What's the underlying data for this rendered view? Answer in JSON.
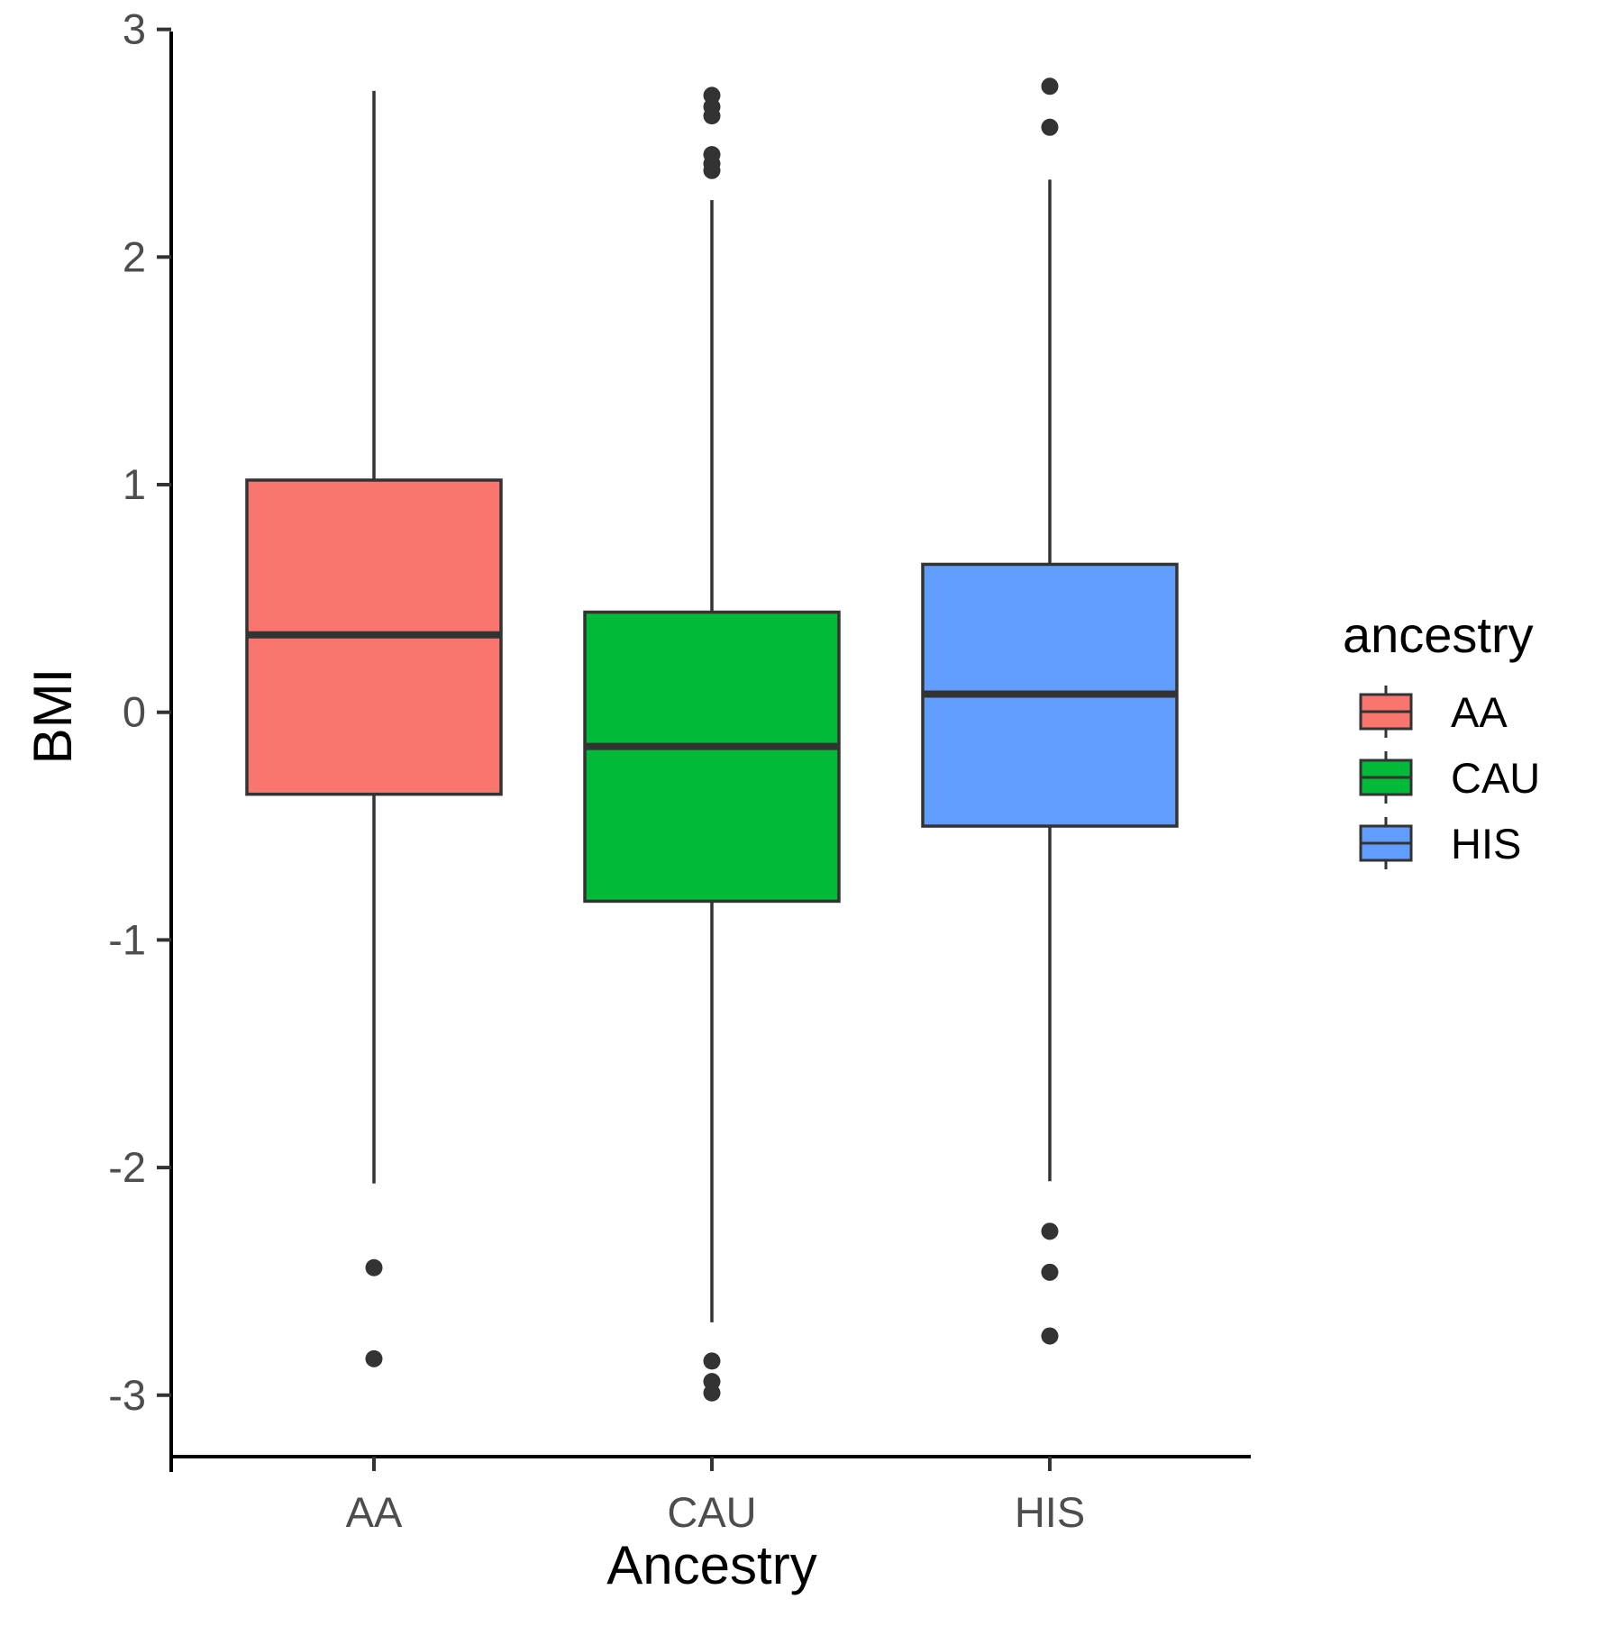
{
  "chart_data": {
    "type": "box",
    "xlabel": "Ancestry",
    "ylabel": "BMI",
    "ylim": [
      -3.27,
      3.05
    ],
    "yticks": [
      -3,
      -2,
      -1,
      0,
      1,
      2,
      3
    ],
    "ytick_labels": [
      "-3",
      "-2",
      "-1",
      "0",
      "1",
      "2",
      "3"
    ],
    "categories": [
      "AA",
      "CAU",
      "HIS"
    ],
    "grid": false,
    "legend": {
      "title": "ancestry",
      "position": "right",
      "entries": [
        "AA",
        "CAU",
        "HIS"
      ]
    },
    "series": [
      {
        "name": "AA",
        "color": "#F8766D",
        "whisker_low": -2.07,
        "q1": -0.36,
        "median": 0.34,
        "q3": 1.02,
        "whisker_high": 2.73,
        "outliers": [
          -2.44,
          -2.84
        ]
      },
      {
        "name": "CAU",
        "color": "#00BA38",
        "whisker_low": -2.68,
        "q1": -0.83,
        "median": -0.15,
        "q3": 0.44,
        "whisker_high": 2.25,
        "outliers": [
          2.71,
          2.66,
          2.62,
          2.45,
          2.41,
          2.38,
          -2.85,
          -2.94,
          -2.99
        ]
      },
      {
        "name": "HIS",
        "color": "#619CFF",
        "whisker_low": -2.06,
        "q1": -0.5,
        "median": 0.08,
        "q3": 0.65,
        "whisker_high": 2.34,
        "outliers": [
          2.75,
          2.57,
          -2.28,
          -2.46,
          -2.74
        ]
      }
    ]
  }
}
